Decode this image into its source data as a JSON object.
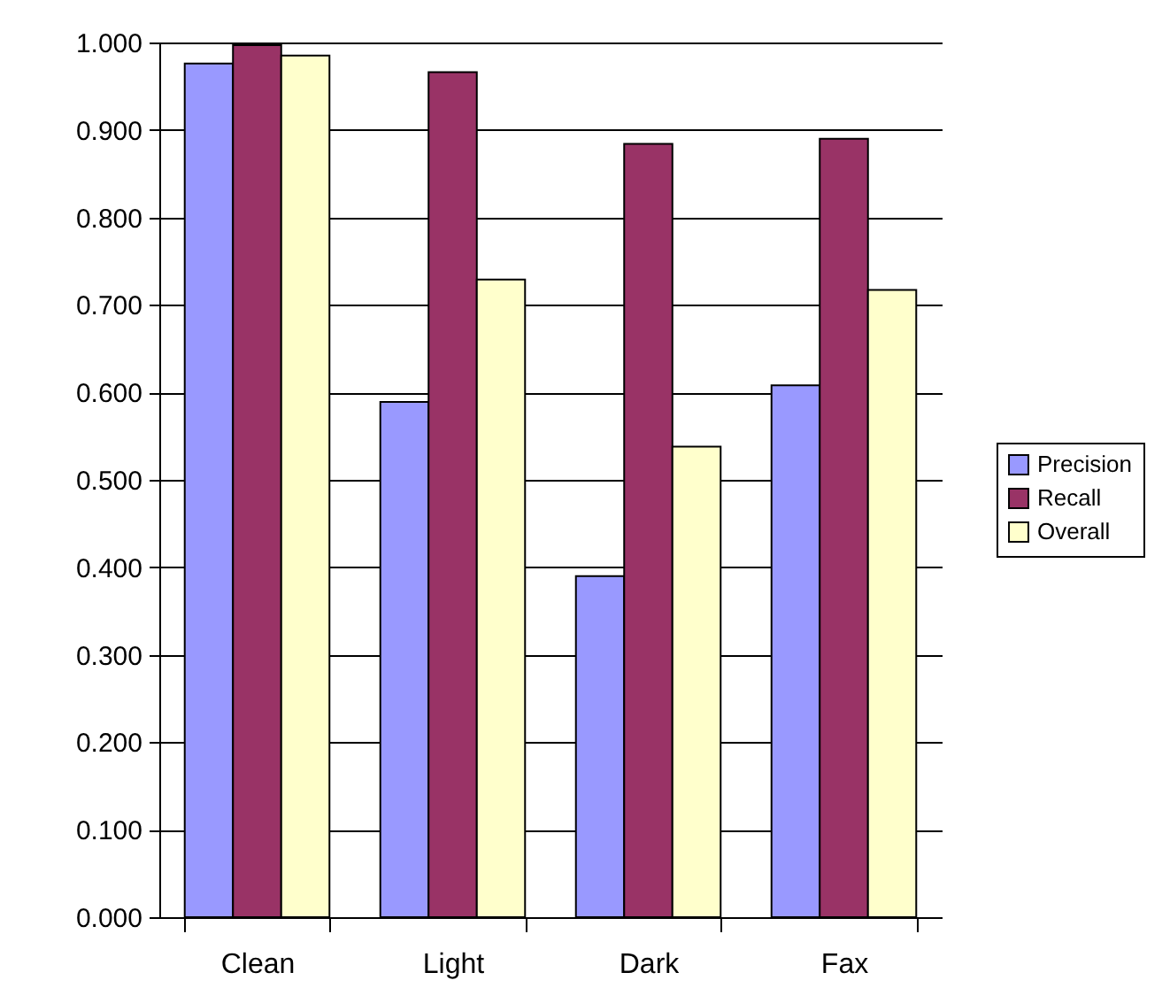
{
  "chart_data": {
    "type": "bar",
    "categories": [
      "Clean",
      "Light",
      "Dark",
      "Fax"
    ],
    "series": [
      {
        "name": "Precision",
        "color": "#9999ff",
        "values": [
          0.976,
          0.589,
          0.39,
          0.608
        ]
      },
      {
        "name": "Recall",
        "color": "#993366",
        "values": [
          0.997,
          0.966,
          0.884,
          0.89
        ]
      },
      {
        "name": "Overall",
        "color": "#ffffcc",
        "values": [
          0.985,
          0.729,
          0.538,
          0.717
        ]
      }
    ],
    "ylim": [
      0,
      1
    ],
    "yticks": [
      {
        "value": 0,
        "label": "0.000"
      },
      {
        "value": 0.1,
        "label": "0.100"
      },
      {
        "value": 0.2,
        "label": "0.200"
      },
      {
        "value": 0.3,
        "label": "0.300"
      },
      {
        "value": 0.4,
        "label": "0.400"
      },
      {
        "value": 0.5,
        "label": "0.500"
      },
      {
        "value": 0.6,
        "label": "0.600"
      },
      {
        "value": 0.7,
        "label": "0.700"
      },
      {
        "value": 0.8,
        "label": "0.800"
      },
      {
        "value": 0.9,
        "label": "0.900"
      },
      {
        "value": 1,
        "label": "1.000"
      }
    ],
    "grid": "y",
    "legend": "right"
  }
}
